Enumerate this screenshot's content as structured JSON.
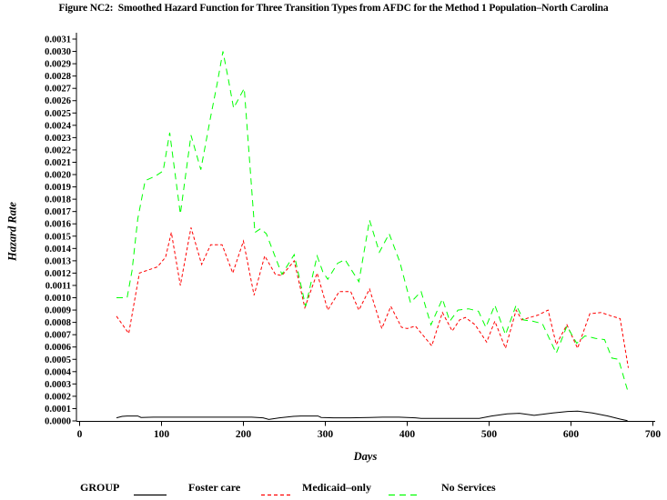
{
  "title": "Figure NC2:  Smoothed Hazard Function for Three Transition Types from AFDC for the Method 1 Population–North Carolina",
  "legend": {
    "group_label": "GROUP"
  },
  "chart_data": {
    "type": "line",
    "title": "Figure NC2:  Smoothed Hazard Function for Three Transition Types from AFDC for the Method 1 Population–North Carolina",
    "xlabel": "Days",
    "ylabel": "Hazard Rate",
    "xlim": [
      0,
      700
    ],
    "ylim": [
      0,
      0.0031
    ],
    "x_tick_step": 100,
    "y_tick_step": 0.0001,
    "y_tick_decimals": 4,
    "grid": false,
    "legend_position": "bottom",
    "series": [
      {
        "id": "foster-care",
        "name": "Foster care",
        "color": "#000000",
        "dash": "",
        "x": [
          45,
          52,
          58,
          71,
          75,
          90,
          110,
          130,
          150,
          170,
          190,
          210,
          224,
          231,
          244,
          261,
          270,
          291,
          295,
          310,
          330,
          354,
          370,
          390,
          410,
          417,
          440,
          460,
          488,
          503,
          522,
          537,
          555,
          578,
          596,
          608,
          626,
          645,
          660,
          669
        ],
        "y": [
          2.5e-05,
          3.7e-05,
          4e-05,
          4e-05,
          2.8e-05,
          3e-05,
          3e-05,
          3e-05,
          3e-05,
          3e-05,
          3e-05,
          3e-05,
          2.5e-05,
          1.2e-05,
          2.5e-05,
          3.7e-05,
          4e-05,
          4e-05,
          2.8e-05,
          2.5e-05,
          2.5e-05,
          2.8e-05,
          3e-05,
          3e-05,
          2.5e-05,
          2e-05,
          2e-05,
          2e-05,
          2e-05,
          4e-05,
          5.7e-05,
          6.2e-05,
          4.5e-05,
          6.4e-05,
          7.7e-05,
          8e-05,
          6.4e-05,
          4e-05,
          1.5e-05,
          2e-06
        ]
      },
      {
        "id": "medicaid-only",
        "name": "Medicaid–only",
        "color": "#ff0000",
        "dash": "3.5 2.5",
        "x": [
          45,
          60,
          73,
          77,
          95,
          105,
          112,
          123,
          136,
          149,
          160,
          174,
          187,
          200,
          213,
          226,
          239,
          247,
          262,
          275,
          290,
          303,
          317,
          331,
          341,
          354,
          369,
          380,
          393,
          400,
          410,
          430,
          443,
          455,
          464,
          471,
          483,
          497,
          507,
          520,
          533,
          540,
          550,
          560,
          572,
          582,
          595,
          608,
          623,
          637,
          650,
          660,
          670
        ],
        "y": [
          0.00085,
          0.00071,
          0.0012,
          0.00121,
          0.00125,
          0.00133,
          0.00153,
          0.0011,
          0.00157,
          0.00127,
          0.00143,
          0.00143,
          0.0012,
          0.00146,
          0.00102,
          0.00134,
          0.00119,
          0.00118,
          0.0013,
          0.00092,
          0.0012,
          0.0009,
          0.00105,
          0.00105,
          0.0009,
          0.00107,
          0.00075,
          0.00093,
          0.00076,
          0.00075,
          0.00077,
          0.00061,
          0.00088,
          0.00073,
          0.00082,
          0.00084,
          0.00078,
          0.00064,
          0.00081,
          0.00059,
          0.0009,
          0.00082,
          0.00084,
          0.00086,
          0.0009,
          0.00062,
          0.00078,
          0.00059,
          0.00087,
          0.00088,
          0.00085,
          0.00083,
          0.00043
        ]
      },
      {
        "id": "no-services",
        "name": "No Services",
        "color": "#00ff00",
        "dash": "7 5",
        "x": [
          45,
          58,
          64,
          71,
          80,
          93,
          102,
          110,
          123,
          136,
          148,
          160,
          168,
          175,
          182,
          188,
          201,
          214,
          221,
          228,
          247,
          262,
          276,
          290,
          297,
          303,
          315,
          324,
          341,
          354,
          366,
          378,
          391,
          404,
          417,
          429,
          443,
          452,
          462,
          475,
          487,
          496,
          507,
          520,
          533,
          542,
          553,
          565,
          582,
          595,
          607,
          617,
          630,
          641,
          650,
          658,
          669
        ],
        "y": [
          0.001,
          0.001,
          0.00122,
          0.00164,
          0.00195,
          0.00199,
          0.00203,
          0.00234,
          0.00168,
          0.00232,
          0.00204,
          0.00247,
          0.00274,
          0.003,
          0.00276,
          0.00254,
          0.0027,
          0.00153,
          0.00156,
          0.00152,
          0.00119,
          0.00135,
          0.00093,
          0.00134,
          0.00121,
          0.00115,
          0.00128,
          0.00131,
          0.00113,
          0.00163,
          0.00137,
          0.00152,
          0.00129,
          0.00096,
          0.00105,
          0.00078,
          0.00099,
          0.00081,
          0.0009,
          0.00091,
          0.00089,
          0.00076,
          0.00094,
          0.0007,
          0.00094,
          0.00082,
          0.00081,
          0.00079,
          0.00055,
          0.00077,
          0.00063,
          0.00069,
          0.00067,
          0.00066,
          0.00051,
          0.0005,
          0.00025
        ]
      }
    ]
  }
}
